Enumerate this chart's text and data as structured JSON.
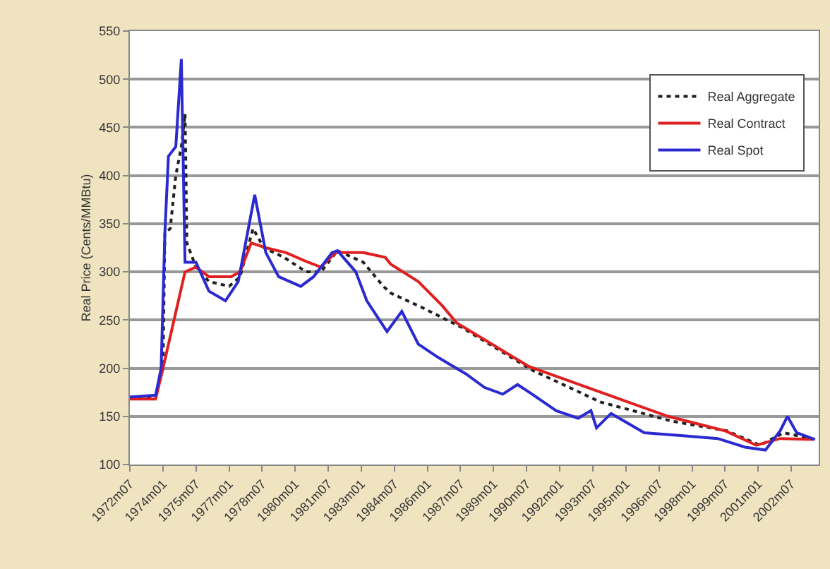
{
  "chart_data": {
    "type": "line",
    "ylabel": "Real Price (Cents/MMBtu)",
    "xlim": [
      "1972-07",
      "2003-10"
    ],
    "xticks": [
      {
        "value": "1972-07",
        "label": "1972m07"
      },
      {
        "value": "1974-01",
        "label": "1974m01"
      },
      {
        "value": "1975-07",
        "label": "1975m07"
      },
      {
        "value": "1977-01",
        "label": "1977m01"
      },
      {
        "value": "1978-07",
        "label": "1978m07"
      },
      {
        "value": "1980-01",
        "label": "1980m01"
      },
      {
        "value": "1981-07",
        "label": "1981m07"
      },
      {
        "value": "1983-01",
        "label": "1983m01"
      },
      {
        "value": "1984-07",
        "label": "1984m07"
      },
      {
        "value": "1986-01",
        "label": "1986m01"
      },
      {
        "value": "1987-07",
        "label": "1987m07"
      },
      {
        "value": "1989-01",
        "label": "1989m01"
      },
      {
        "value": "1990-07",
        "label": "1990m07"
      },
      {
        "value": "1992-01",
        "label": "1992m01"
      },
      {
        "value": "1993-07",
        "label": "1993m07"
      },
      {
        "value": "1995-01",
        "label": "1995m01"
      },
      {
        "value": "1996-07",
        "label": "1996m07"
      },
      {
        "value": "1998-01",
        "label": "1998m01"
      },
      {
        "value": "1999-07",
        "label": "1999m07"
      },
      {
        "value": "2001-01",
        "label": "2001m01"
      },
      {
        "value": "2002-07",
        "label": "2002m07"
      }
    ],
    "ylim": [
      100,
      550
    ],
    "yticks": [
      100,
      150,
      200,
      250,
      300,
      350,
      400,
      450,
      500,
      550
    ],
    "grid": "y",
    "legend": "top right",
    "series": [
      {
        "name": "Real Aggregate",
        "color": "#202020",
        "line_style": "dotted",
        "x": [
          "1972-07",
          "1973-09",
          "1974-01",
          "1974-02",
          "1974-05",
          "1974-08",
          "1974-11",
          "1975-01",
          "1975-02",
          "1975-07",
          "1976-02",
          "1977-01",
          "1977-07",
          "1978-02",
          "1978-08",
          "1979-07",
          "1980-07",
          "1981-03",
          "1981-12",
          "1983-02",
          "1984-01",
          "1984-05",
          "1985-09",
          "1987-08",
          "1990-10",
          "1993-11",
          "1997-02",
          "1999-08",
          "2001-02",
          "2002-03",
          "2003-08"
        ],
        "values": [
          170,
          170,
          200,
          340,
          345,
          400,
          430,
          464,
          330,
          305,
          290,
          285,
          295,
          345,
          325,
          315,
          300,
          300,
          322,
          310,
          285,
          278,
          264,
          242,
          198,
          165,
          145,
          135,
          120,
          133,
          126
        ]
      },
      {
        "name": "Real Contract",
        "color": "#e02020",
        "line_style": "solid",
        "x": [
          "1972-07",
          "1973-09",
          "1974-01",
          "1975-01",
          "1975-07",
          "1976-02",
          "1977-02",
          "1977-07",
          "1978-01",
          "1978-09",
          "1979-08",
          "1980-08",
          "1981-03",
          "1981-11",
          "1983-02",
          "1984-02",
          "1984-05",
          "1985-08",
          "1986-09",
          "1987-05",
          "1990-08",
          "1993-10",
          "1996-12",
          "1999-07",
          "2000-12",
          "2002-01",
          "2003-07"
        ],
        "values": [
          168,
          168,
          200,
          300,
          305,
          295,
          295,
          300,
          330,
          325,
          320,
          310,
          305,
          320,
          320,
          315,
          308,
          290,
          265,
          247,
          202,
          176,
          150,
          135,
          120,
          127,
          126
        ]
      },
      {
        "name": "Real Spot",
        "color": "#2a2ad0",
        "line_style": "solid",
        "x": [
          "1972-07",
          "1973-09",
          "1973-12",
          "1974-02",
          "1974-04",
          "1974-08",
          "1974-11",
          "1975-01",
          "1975-07",
          "1976-02",
          "1976-11",
          "1977-06",
          "1977-10",
          "1978-03",
          "1978-09",
          "1979-04",
          "1980-04",
          "1980-11",
          "1981-09",
          "1981-12",
          "1982-10",
          "1983-04",
          "1984-03",
          "1984-11",
          "1985-08",
          "1986-07",
          "1987-10",
          "1988-08",
          "1989-06",
          "1990-02",
          "1990-10",
          "1991-11",
          "1992-11",
          "1993-06",
          "1993-09",
          "1994-05",
          "1995-11",
          "1997-07",
          "1999-03",
          "2000-06",
          "2001-05",
          "2002-01",
          "2002-05",
          "2002-10",
          "2003-08"
        ],
        "values": [
          170,
          172,
          200,
          340,
          420,
          430,
          521,
          310,
          310,
          280,
          270,
          290,
          330,
          380,
          320,
          295,
          285,
          295,
          320,
          322,
          300,
          270,
          238,
          259,
          225,
          211,
          194,
          180,
          173,
          183,
          173,
          156,
          148,
          156,
          138,
          153,
          133,
          130,
          127,
          118,
          115,
          135,
          150,
          133,
          126
        ]
      }
    ]
  }
}
